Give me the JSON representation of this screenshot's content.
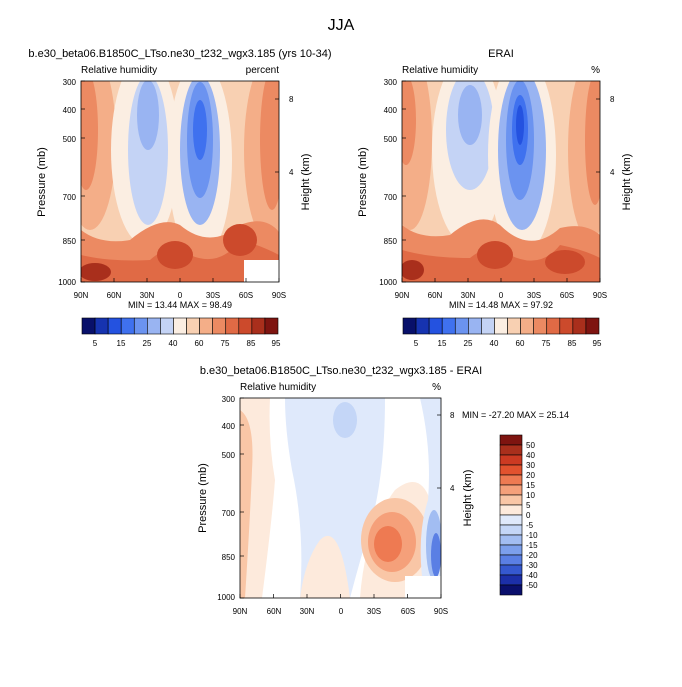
{
  "figure_title": "JJA",
  "chart_data": [
    {
      "type": "heatmap",
      "title": "b.e30_beta06.B1850C_LTso.ne30_t232_wgx3.185 (yrs 10-34)",
      "left_label": "Relative humidity",
      "right_label": "percent",
      "ylabel": "Pressure (mb)",
      "y2label": "Height (km)",
      "x_ticks": [
        "90N",
        "60N",
        "30N",
        "0",
        "30S",
        "60S",
        "90S"
      ],
      "y_ticks": [
        "300",
        "400",
        "500",
        "700",
        "850",
        "1000"
      ],
      "y2_ticks": [
        "8",
        "4"
      ],
      "stats": "MIN = 13.44   MAX = 98.49",
      "colorbar_labels": [
        "5",
        "15",
        "25",
        "40",
        "60",
        "75",
        "85",
        "95"
      ]
    },
    {
      "type": "heatmap",
      "title": "ERAI",
      "left_label": "Relative humidity",
      "right_label": "%",
      "ylabel": "Pressure (mb)",
      "y2label": "Height (km)",
      "x_ticks": [
        "90N",
        "60N",
        "30N",
        "0",
        "30S",
        "60S",
        "90S"
      ],
      "y_ticks": [
        "300",
        "400",
        "500",
        "700",
        "850",
        "1000"
      ],
      "y2_ticks": [
        "8",
        "4"
      ],
      "stats": "MIN = 14.48   MAX = 97.92",
      "colorbar_labels": [
        "5",
        "15",
        "25",
        "40",
        "60",
        "75",
        "85",
        "95"
      ]
    },
    {
      "type": "heatmap",
      "title": "b.e30_beta06.B1850C_LTso.ne30_t232_wgx3.185 - ERAI",
      "left_label": "Relative humidity",
      "right_label": "%",
      "ylabel": "Pressure (mb)",
      "y2label": "Height (km)",
      "x_ticks": [
        "90N",
        "60N",
        "30N",
        "0",
        "30S",
        "60S",
        "90S"
      ],
      "y_ticks": [
        "300",
        "400",
        "500",
        "700",
        "850",
        "1000"
      ],
      "y2_ticks": [
        "8",
        "4"
      ],
      "stats": "MIN = -27.20   MAX = 25.14",
      "colorbar_labels": [
        "50",
        "40",
        "30",
        "20",
        "15",
        "10",
        "5",
        "0",
        "-5",
        "-10",
        "-15",
        "-20",
        "-30",
        "-40",
        "-50"
      ]
    }
  ],
  "colors": {
    "rh_scale": [
      "#08106a",
      "#1633b0",
      "#2452e0",
      "#3f71ef",
      "#6b93f0",
      "#99b4f2",
      "#c4d3f5",
      "#fbeee2",
      "#f8d0b2",
      "#f4ae88",
      "#ec8a62",
      "#e06a45",
      "#cc4a2c",
      "#a92f1c",
      "#7e1410"
    ],
    "diff_scale": [
      "#7e1410",
      "#a92f1c",
      "#cc3a22",
      "#e2522e",
      "#ee7a52",
      "#f5a07a",
      "#f9c6a6",
      "#fdeadc",
      "#dfe9fb",
      "#c4d6f7",
      "#a2bdf2",
      "#7c9fec",
      "#5a7fe4",
      "#3558cf",
      "#1c2fa8",
      "#0a0f6c"
    ]
  }
}
